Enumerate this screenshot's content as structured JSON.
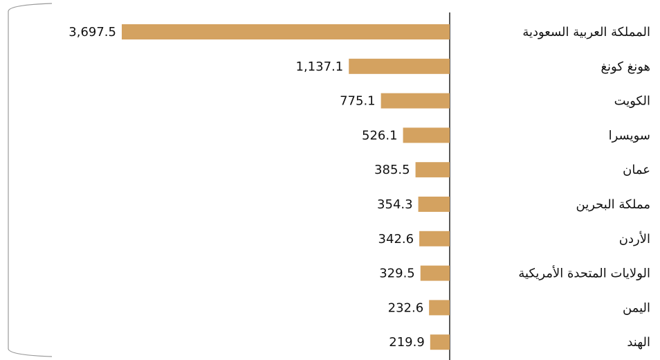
{
  "chart_data": {
    "type": "bar",
    "orientation": "horizontal",
    "categories": [
      "المملكة العربية السعودية",
      "هونغ كونغ",
      "الكويت",
      "سويسرا",
      "عمان",
      "مملكة البحرين",
      "الأردن",
      "الولايات المتحدة الأمريكية",
      "اليمن",
      "الهند"
    ],
    "values": [
      3697.5,
      1137.1,
      775.1,
      526.1,
      385.5,
      354.3,
      342.6,
      329.5,
      232.6,
      219.9
    ],
    "value_labels": [
      "3,697.5",
      "1,137.1",
      "775.1",
      "526.1",
      "385.5",
      "354.3",
      "342.6",
      "329.5",
      "232.6",
      "219.9"
    ],
    "color": "#d4a260"
  }
}
